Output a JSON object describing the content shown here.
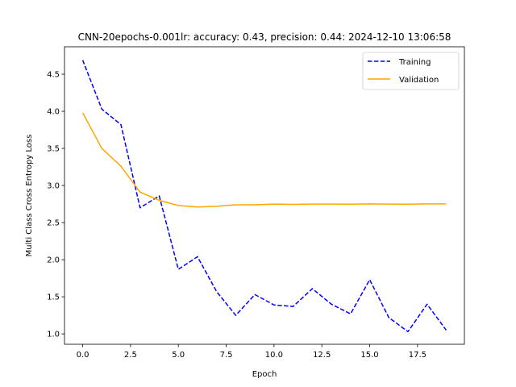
{
  "chart_data": {
    "type": "line",
    "title": "CNN-20epochs-0.001lr: accuracy: 0.43, precision: 0.44: 2024-12-10 13:06:58",
    "xlabel": "Epoch",
    "ylabel": "Multi Class Cross Entropy Loss",
    "xlim": [
      -0.95,
      19.95
    ],
    "ylim": [
      0.86,
      4.87
    ],
    "xticks": [
      0.0,
      2.5,
      5.0,
      7.5,
      10.0,
      12.5,
      15.0,
      17.5
    ],
    "xtick_labels": [
      "0.0",
      "2.5",
      "5.0",
      "7.5",
      "10.0",
      "12.5",
      "15.0",
      "17.5"
    ],
    "yticks": [
      1.0,
      1.5,
      2.0,
      2.5,
      3.0,
      3.5,
      4.0,
      4.5
    ],
    "ytick_labels": [
      "1.0",
      "1.5",
      "2.0",
      "2.5",
      "3.0",
      "3.5",
      "4.0",
      "4.5"
    ],
    "grid": false,
    "legend_position": "top-right",
    "x": [
      0,
      1,
      2,
      3,
      4,
      5,
      6,
      7,
      8,
      9,
      10,
      11,
      12,
      13,
      14,
      15,
      16,
      17,
      18,
      19
    ],
    "series": [
      {
        "name": "Training",
        "color": "#0000ff",
        "style": "dashed",
        "values": [
          4.69,
          4.03,
          3.82,
          2.7,
          2.86,
          1.87,
          2.04,
          1.57,
          1.25,
          1.53,
          1.39,
          1.37,
          1.61,
          1.4,
          1.27,
          1.73,
          1.22,
          1.03,
          1.4,
          1.05
        ]
      },
      {
        "name": "Validation",
        "color": "#ffa500",
        "style": "solid",
        "values": [
          3.98,
          3.5,
          3.26,
          2.91,
          2.8,
          2.73,
          2.71,
          2.72,
          2.74,
          2.74,
          2.75,
          2.745,
          2.75,
          2.75,
          2.748,
          2.752,
          2.75,
          2.748,
          2.752,
          2.752
        ]
      }
    ]
  }
}
